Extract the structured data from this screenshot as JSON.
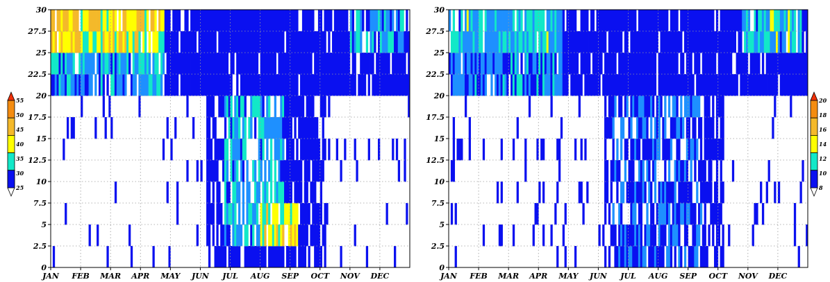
{
  "chart_data": [
    {
      "type": "heatmap",
      "x_axis": {
        "tick_labels": [
          "JAN",
          "FEB",
          "MAR",
          "APR",
          "MAY",
          "JUN",
          "JUL",
          "AUG",
          "SEP",
          "OCT",
          "NOV",
          "DEC"
        ]
      },
      "y_axis": {
        "tick_labels": [
          "0",
          "2.5",
          "5",
          "7.5",
          "10",
          "12.5",
          "15",
          "17.5",
          "20",
          "22.5",
          "25",
          "27.5",
          "30"
        ],
        "ylim": [
          0,
          30
        ]
      },
      "grid": true,
      "colorbar": {
        "levels": [
          25,
          30,
          35,
          40,
          45,
          50,
          55
        ],
        "colors": [
          "#0a10f0",
          "#1e90ff",
          "#12e8c8",
          "#ffff00",
          "#f4b92a",
          "#f48c10",
          "#f03008"
        ]
      },
      "region_values": [
        {
          "months": [
            1.0,
            4.8
          ],
          "rows": [
            29,
            30
          ],
          "value": 47
        },
        {
          "months": [
            1.0,
            4.8
          ],
          "rows": [
            27,
            29
          ],
          "value": 45
        },
        {
          "months": [
            1.0,
            4.8
          ],
          "rows": [
            25,
            27
          ],
          "value": 43
        },
        {
          "months": [
            1.0,
            4.8
          ],
          "rows": [
            23,
            25
          ],
          "value": 34
        },
        {
          "months": [
            1.0,
            4.8
          ],
          "rows": [
            21,
            23
          ],
          "value": 32
        },
        {
          "months": [
            1.0,
            5.0
          ],
          "rows": [
            19,
            21
          ],
          "value": 27
        },
        {
          "months": [
            6.8,
            8.8
          ],
          "rows": [
            3,
            8
          ],
          "value": 33
        },
        {
          "months": [
            8.0,
            9.3
          ],
          "rows": [
            2,
            7
          ],
          "value": 42
        },
        {
          "months": [
            6.8,
            8.8
          ],
          "rows": [
            8,
            19
          ],
          "value": 34
        },
        {
          "months": [
            11.0,
            12.8
          ],
          "rows": [
            25,
            30
          ],
          "value": 33
        }
      ]
    },
    {
      "type": "heatmap",
      "x_axis": {
        "tick_labels": [
          "JAN",
          "FEB",
          "MAR",
          "APR",
          "MAY",
          "JUN",
          "JUL",
          "AUG",
          "SEP",
          "OCT",
          "NOV",
          "DEC"
        ]
      },
      "y_axis": {
        "tick_labels": [
          "0",
          "2.5",
          "5",
          "7.5",
          "10",
          "12.5",
          "15",
          "17.5",
          "20",
          "22.5",
          "25",
          "27.5",
          "30"
        ],
        "ylim": [
          0,
          30
        ]
      },
      "grid": true,
      "colorbar": {
        "levels": [
          8,
          10,
          12,
          14,
          16,
          18,
          20
        ],
        "colors": [
          "#0a10f0",
          "#1e90ff",
          "#12e8c8",
          "#ffff00",
          "#f4b92a",
          "#f48c10",
          "#f03008"
        ]
      },
      "region_values": [
        {
          "months": [
            1.0,
            4.8
          ],
          "rows": [
            25,
            30
          ],
          "value": 12
        },
        {
          "months": [
            1.0,
            4.8
          ],
          "rows": [
            21,
            25
          ],
          "value": 10.5
        },
        {
          "months": [
            6.5,
            9.5
          ],
          "rows": [
            0,
            19
          ],
          "value": 9.5
        },
        {
          "months": [
            10.8,
            12.8
          ],
          "rows": [
            25,
            30
          ],
          "value": 12
        }
      ]
    }
  ]
}
